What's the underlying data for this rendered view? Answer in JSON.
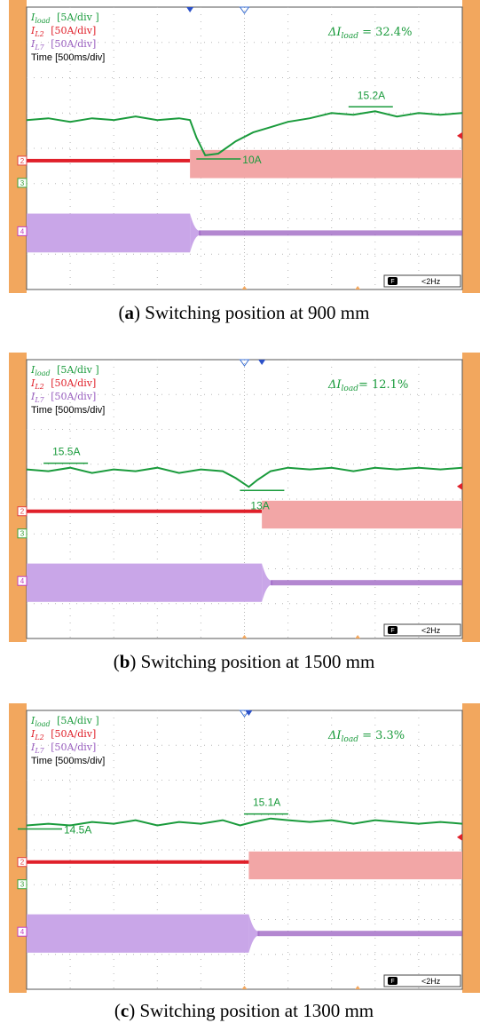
{
  "chart_data": [
    {
      "type": "line",
      "panel_label": "a",
      "caption": "Switching position at 900 mm",
      "legend": [
        {
          "sym": "I",
          "sub": "load",
          "scale": "[5A/div  ]",
          "color": "#1a9b3c"
        },
        {
          "sym": "I",
          "sub": "L2",
          "scale": "[50A/div]",
          "color": "#e0202a"
        },
        {
          "sym": "I",
          "sub": "L7",
          "scale": "[50A/div]",
          "color": "#9a5fc0"
        },
        {
          "sym": "",
          "sub": "",
          "scale": "Time [500ms/div]",
          "color": "#000000"
        }
      ],
      "delta_text": "ΔI",
      "delta_sub": "load",
      "delta_value": " = 32.4%",
      "annotations": [
        "15.2A",
        "10A"
      ],
      "freq_label": "<2Hz",
      "channel_markers": [
        "2",
        "3",
        "4"
      ],
      "switch_time_div": 3.75,
      "series": [
        {
          "name": "I_load",
          "x_div": [
            0,
            0.5,
            1,
            1.5,
            2,
            2.5,
            3,
            3.5,
            3.75,
            3.9,
            4.1,
            4.4,
            4.8,
            5.2,
            5.6,
            6,
            6.5,
            7,
            7.5,
            8,
            8.5,
            9,
            9.5,
            10
          ],
          "y_div": [
            0.8,
            0.85,
            0.75,
            0.85,
            0.8,
            0.9,
            0.8,
            0.85,
            0.8,
            0.3,
            -0.2,
            -0.15,
            0.2,
            0.45,
            0.6,
            0.75,
            0.85,
            1.0,
            0.95,
            1.05,
            0.9,
            1.0,
            0.95,
            1.0
          ]
        },
        {
          "name": "I_L2",
          "level_before": -0.35,
          "level_after": -0.35,
          "amp_before": 0.05,
          "amp_after": 0.55
        },
        {
          "name": "I_L7",
          "level_before": -2.4,
          "level_after": -2.4,
          "amp_before": 0.55,
          "amp_after": 0.05
        }
      ]
    },
    {
      "type": "line",
      "panel_label": "b",
      "caption": "Switching position at 1500 mm",
      "legend": [
        {
          "sym": "I",
          "sub": "load",
          "scale": "[5A/div  ]",
          "color": "#1a9b3c"
        },
        {
          "sym": "I",
          "sub": "L2",
          "scale": "[50A/div]",
          "color": "#e0202a"
        },
        {
          "sym": "I",
          "sub": "L7",
          "scale": "[50A/div]",
          "color": "#9a5fc0"
        },
        {
          "sym": "",
          "sub": "",
          "scale": "Time [500ms/div]",
          "color": "#000000"
        }
      ],
      "delta_text": "ΔI",
      "delta_sub": "load",
      "delta_value": "= 12.1%",
      "annotations": [
        "15.5A",
        "13A"
      ],
      "freq_label": "<2Hz",
      "channel_markers": [
        "2",
        "3",
        "4"
      ],
      "switch_time_div": 5.4,
      "series": [
        {
          "name": "I_load",
          "x_div": [
            0,
            0.5,
            1,
            1.5,
            2,
            2.5,
            3,
            3.5,
            4,
            4.5,
            4.8,
            5.1,
            5.3,
            5.6,
            6,
            6.5,
            7,
            7.5,
            8,
            8.5,
            9,
            9.5,
            10
          ],
          "y_div": [
            0.85,
            0.8,
            0.9,
            0.75,
            0.85,
            0.8,
            0.9,
            0.75,
            0.85,
            0.8,
            0.6,
            0.35,
            0.55,
            0.8,
            0.9,
            0.85,
            0.9,
            0.8,
            0.9,
            0.85,
            0.9,
            0.85,
            0.9
          ]
        },
        {
          "name": "I_L2",
          "level_before": -0.35,
          "level_after": -0.35,
          "amp_before": 0.05,
          "amp_after": 0.55
        },
        {
          "name": "I_L7",
          "level_before": -2.4,
          "level_after": -2.4,
          "amp_before": 0.55,
          "amp_after": 0.05
        }
      ]
    },
    {
      "type": "line",
      "panel_label": "c",
      "caption": "Switching position at 1300 mm",
      "legend": [
        {
          "sym": "I",
          "sub": "load",
          "scale": "[5A/div  ]",
          "color": "#1a9b3c"
        },
        {
          "sym": "I",
          "sub": "L2",
          "scale": "[50A/div]",
          "color": "#e0202a"
        },
        {
          "sym": "I",
          "sub": "L7",
          "scale": "[50A/div]",
          "color": "#9a5fc0"
        },
        {
          "sym": "",
          "sub": "",
          "scale": "Time [500ms/div]",
          "color": "#000000"
        }
      ],
      "delta_text": "ΔI",
      "delta_sub": "load",
      "delta_value": " = 3.3%",
      "annotations": [
        "15.1A",
        "14.5A"
      ],
      "freq_label": "<2Hz",
      "channel_markers": [
        "2",
        "3",
        "4"
      ],
      "switch_time_div": 5.1,
      "series": [
        {
          "name": "I_load",
          "x_div": [
            0,
            0.5,
            1,
            1.5,
            2,
            2.5,
            3,
            3.5,
            4,
            4.5,
            4.9,
            5.2,
            5.6,
            6,
            6.5,
            7,
            7.5,
            8,
            8.5,
            9,
            9.5,
            10
          ],
          "y_div": [
            0.7,
            0.75,
            0.7,
            0.8,
            0.75,
            0.85,
            0.7,
            0.8,
            0.75,
            0.85,
            0.7,
            0.8,
            0.9,
            0.85,
            0.8,
            0.85,
            0.75,
            0.85,
            0.8,
            0.75,
            0.8,
            0.75
          ]
        },
        {
          "name": "I_L2",
          "level_before": -0.35,
          "level_after": -0.35,
          "amp_before": 0.05,
          "amp_after": 0.55
        },
        {
          "name": "I_L7",
          "level_before": -2.4,
          "level_after": -2.4,
          "amp_before": 0.55,
          "amp_after": 0.05
        }
      ]
    }
  ],
  "colors": {
    "frame": "#f2a75e",
    "grid": "#b8b8b8",
    "load": "#1a9b3c",
    "l2_line": "#e0202a",
    "l2_fill": "#f2a6a6",
    "l7_fill": "#c9a6e8",
    "l7_line": "#9a5fc0"
  }
}
